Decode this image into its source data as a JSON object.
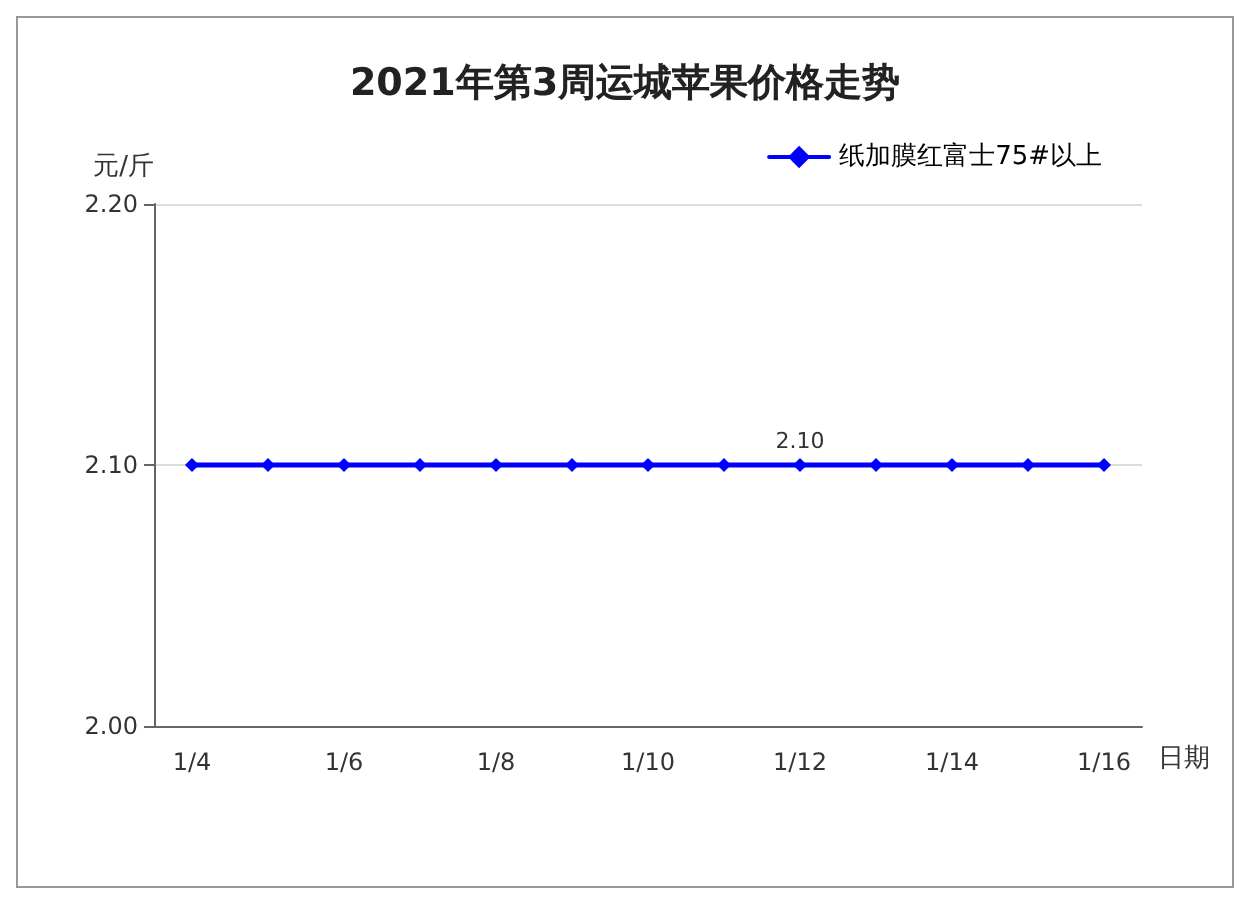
{
  "chart_data": {
    "type": "line",
    "title": "2021年第3周运城苹果价格走势",
    "ylabel": "元/斤",
    "xlabel": "日期",
    "categories": [
      "1/4",
      null,
      "1/6",
      null,
      "1/8",
      null,
      "1/10",
      null,
      "1/12",
      null,
      "1/14",
      null,
      "1/16"
    ],
    "series": [
      {
        "name": "纸加膜红富士75#以上",
        "color": "#0000ff",
        "values": [
          2.1,
          2.1,
          2.1,
          2.1,
          2.1,
          2.1,
          2.1,
          2.1,
          2.1,
          2.1,
          2.1,
          2.1,
          2.1
        ]
      }
    ],
    "ylim": [
      2.0,
      2.2
    ],
    "yticks": [
      {
        "value": 2.0,
        "label": "2.00"
      },
      {
        "value": 2.1,
        "label": "2.10"
      },
      {
        "value": 2.2,
        "label": "2.20"
      }
    ],
    "annotations": [
      {
        "text": "2.10",
        "x": "1/12",
        "y": 2.1
      }
    ],
    "grid": "y",
    "legend": "top right",
    "marker": "diamond",
    "line_style": "solid"
  }
}
